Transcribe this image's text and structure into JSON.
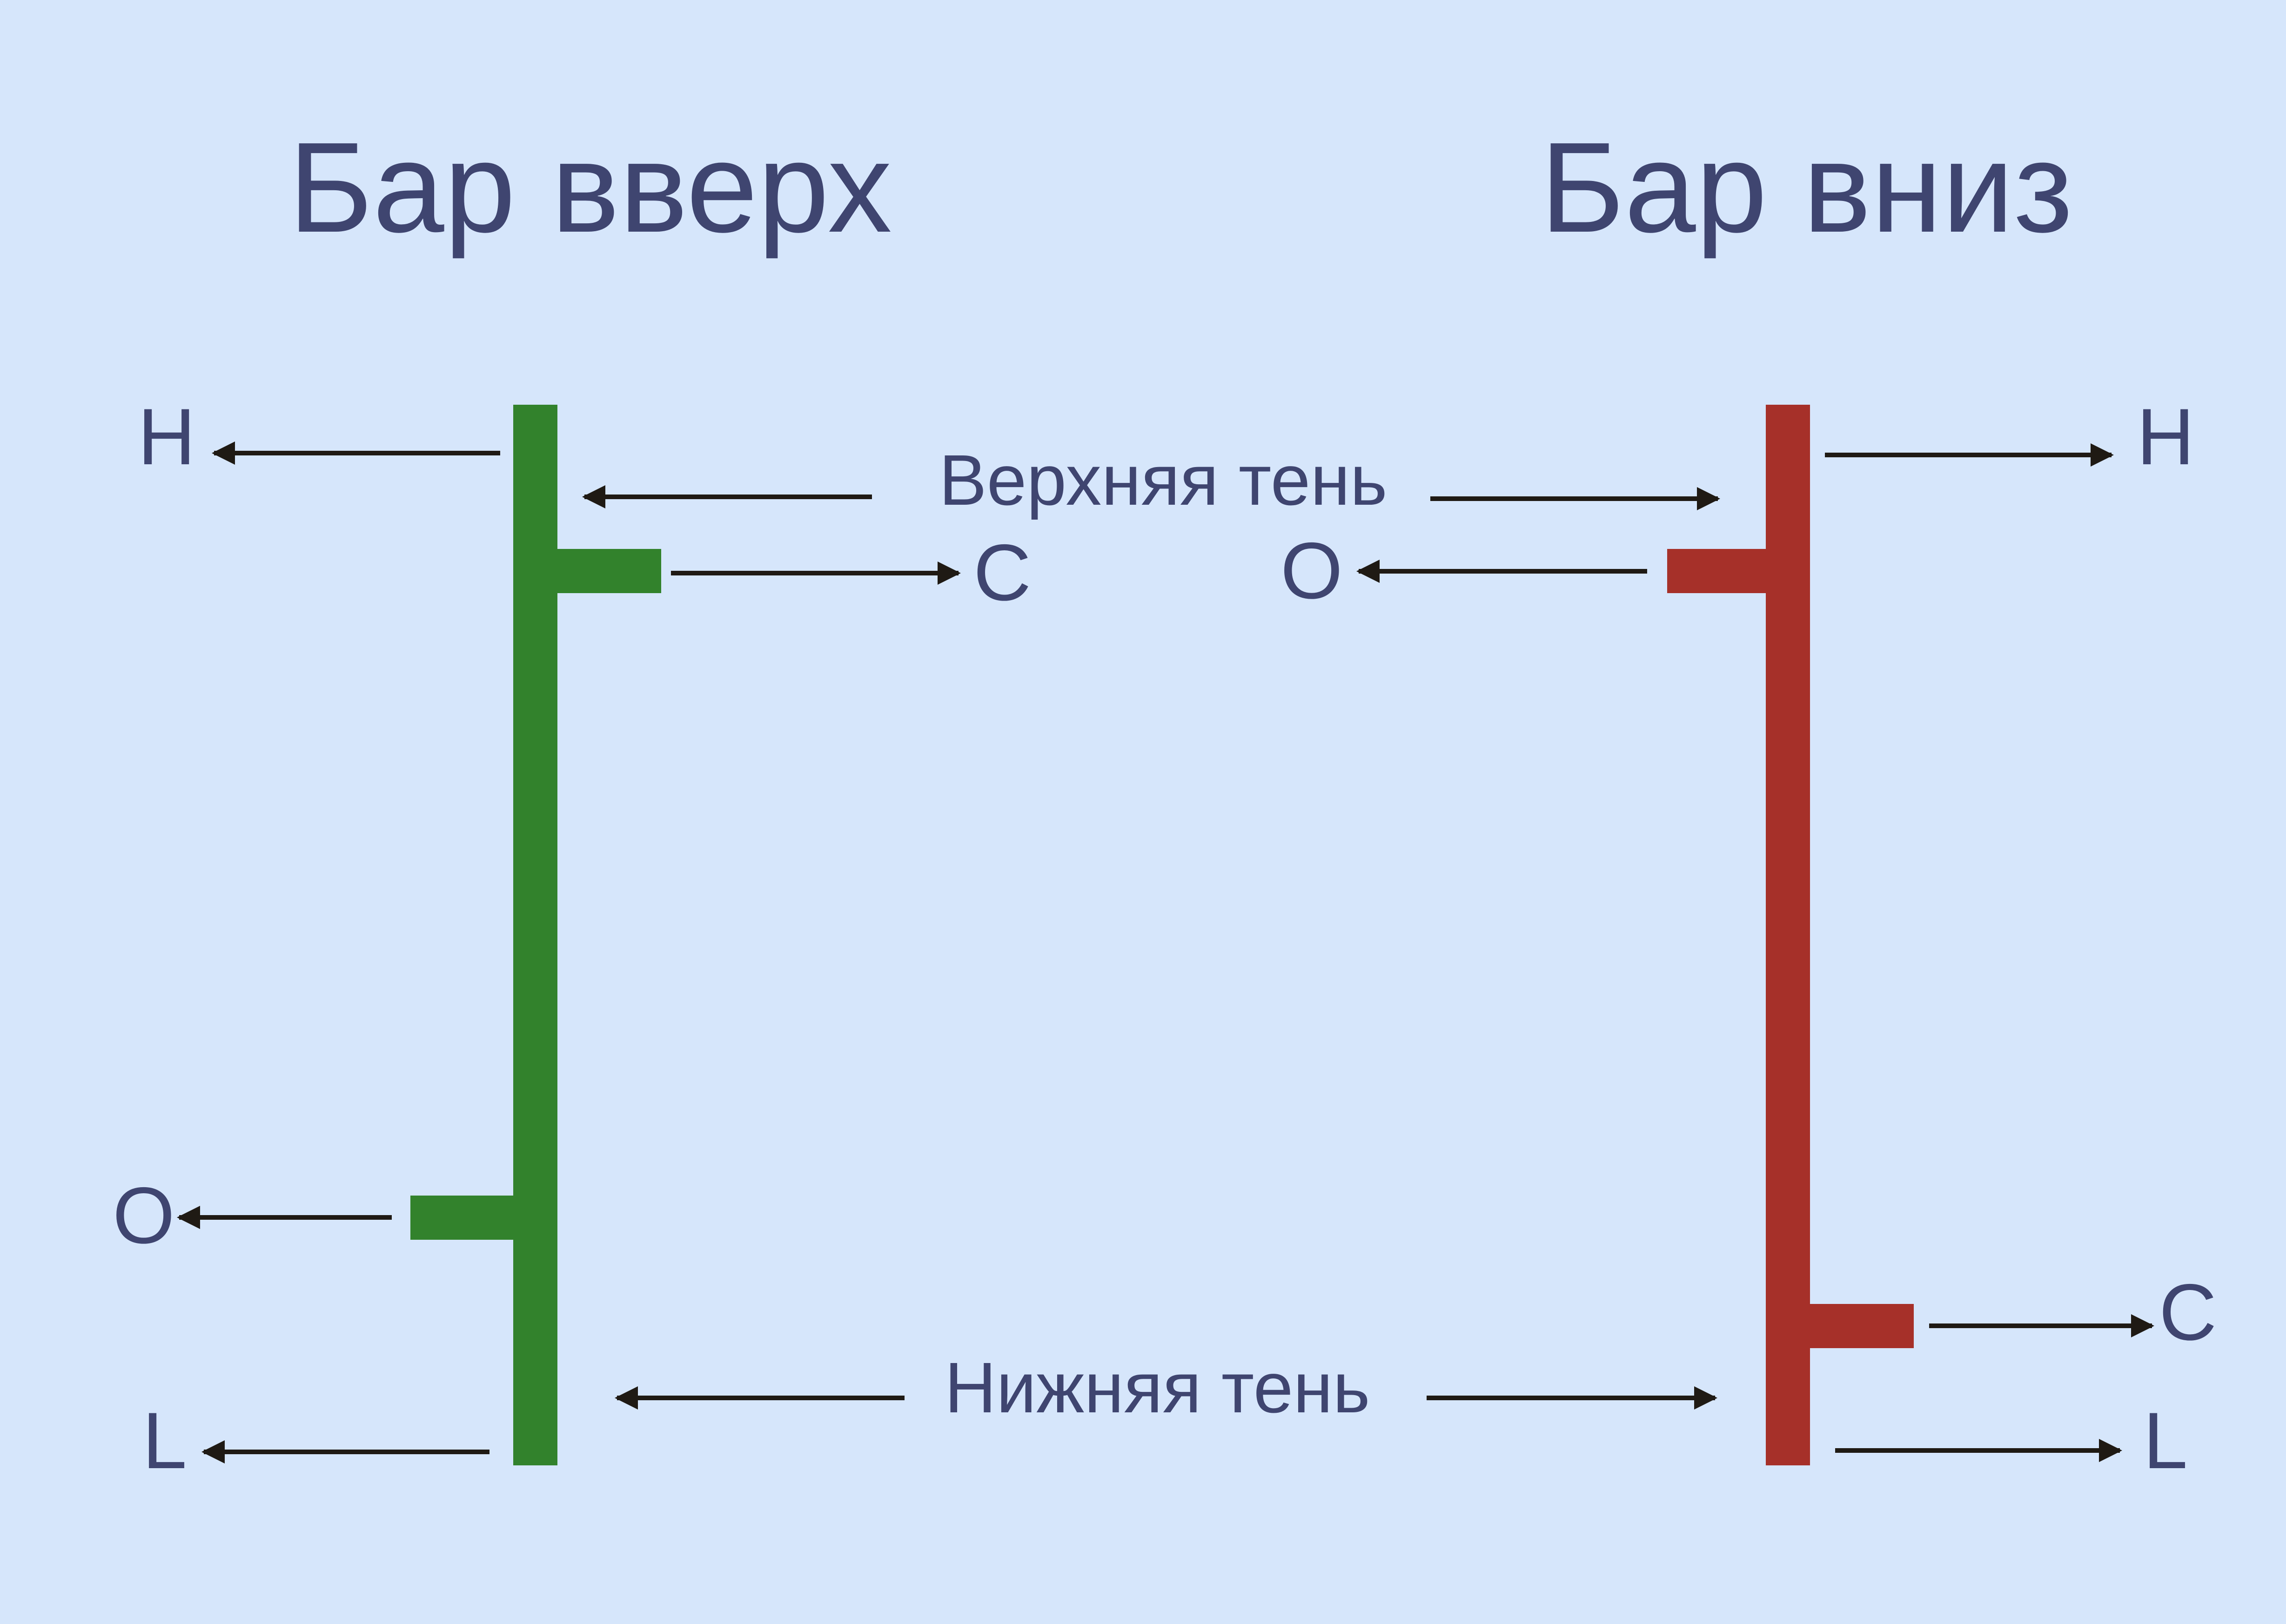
{
  "bar_up": {
    "title": "Бар вверх",
    "high_label": "H",
    "close_label": "C",
    "open_label": "O",
    "low_label": "L",
    "color": "#32822c"
  },
  "bar_down": {
    "title": "Бар вниз",
    "high_label": "H",
    "open_label": "O",
    "close_label": "C",
    "low_label": "L",
    "color": "#a63029"
  },
  "upper_shadow_label": "Верхняя тень",
  "lower_shadow_label": "Нижняя тень",
  "colors": {
    "background": "#d6e6fb",
    "text": "#3f4570",
    "arrow": "#1f1a14"
  }
}
